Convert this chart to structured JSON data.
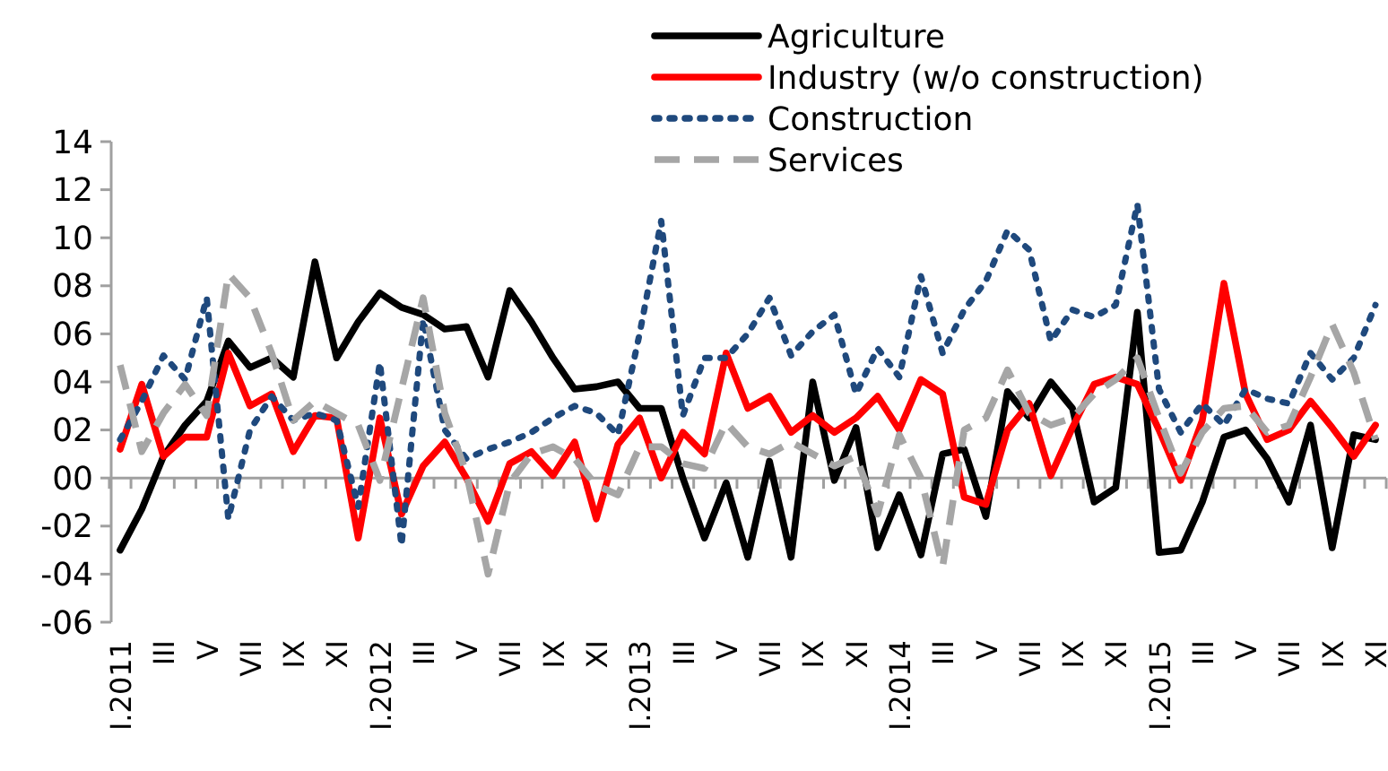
{
  "chart_data": {
    "type": "line",
    "categories": [
      "I.2011",
      null,
      "III",
      null,
      "V",
      null,
      "VII",
      null,
      "IX",
      null,
      "XI",
      null,
      "I.2012",
      null,
      "III",
      null,
      "V",
      null,
      "VII",
      null,
      "IX",
      null,
      "XI",
      null,
      "I.2013",
      null,
      "III",
      null,
      "V",
      null,
      "VII",
      null,
      "IX",
      null,
      "XI",
      null,
      "I.2014",
      null,
      "III",
      null,
      "V",
      null,
      "VII",
      null,
      "IX",
      null,
      "XI",
      null,
      "I.2015",
      null,
      "III",
      null,
      "V",
      null,
      "VII",
      null,
      "IX",
      null,
      "XI"
    ],
    "series": [
      {
        "name": "Agriculture",
        "color": "#000000",
        "line_style": "solid",
        "values": [
          -3.0,
          -1.3,
          0.9,
          2.2,
          3.2,
          5.7,
          4.6,
          5.0,
          4.2,
          9.0,
          5.0,
          6.5,
          7.7,
          7.1,
          6.8,
          6.2,
          6.3,
          4.2,
          7.8,
          6.5,
          5.0,
          3.7,
          3.8,
          4.0,
          2.9,
          2.9,
          0.0,
          -2.5,
          -0.2,
          -3.3,
          0.7,
          -3.3,
          4.0,
          -0.1,
          2.1,
          -2.9,
          -0.7,
          -3.2,
          1.0,
          1.2,
          -1.6,
          3.6,
          2.5,
          4.0,
          2.9,
          -1.0,
          -0.4,
          6.9,
          -3.1,
          -3.0,
          -1.0,
          1.7,
          2.0,
          0.8,
          -1.0,
          2.2,
          -2.9,
          1.8,
          1.6
        ]
      },
      {
        "name": "Industry (w/o construction)",
        "color": "#ff0000",
        "line_style": "solid",
        "values": [
          1.2,
          3.9,
          0.9,
          1.7,
          1.7,
          5.2,
          3.0,
          3.5,
          1.1,
          2.6,
          2.5,
          -2.5,
          2.5,
          -1.5,
          0.5,
          1.5,
          0.0,
          -1.8,
          0.6,
          1.1,
          0.1,
          1.5,
          -1.7,
          1.4,
          2.5,
          0.0,
          1.9,
          1.0,
          5.2,
          2.9,
          3.4,
          1.9,
          2.6,
          1.9,
          2.5,
          3.4,
          2.0,
          4.1,
          3.5,
          -0.8,
          -1.1,
          2.0,
          3.1,
          0.1,
          2.1,
          3.9,
          4.2,
          3.9,
          2.0,
          -0.1,
          2.4,
          8.1,
          3.5,
          1.6,
          2.0,
          3.2,
          2.1,
          0.9,
          2.2
        ]
      },
      {
        "name": "Construction",
        "color": "#1f497d",
        "line_style": "dotted",
        "values": [
          1.6,
          3.2,
          5.1,
          4.1,
          7.5,
          -1.7,
          2.0,
          3.4,
          2.4,
          2.7,
          2.4,
          -1.2,
          4.8,
          -2.8,
          6.6,
          2.0,
          0.8,
          1.2,
          1.5,
          1.9,
          2.5,
          3.0,
          2.7,
          1.8,
          6.0,
          10.7,
          2.6,
          5.0,
          5.0,
          6.0,
          7.5,
          5.1,
          6.1,
          6.8,
          3.5,
          5.4,
          4.2,
          8.4,
          5.2,
          7.0,
          8.2,
          10.3,
          9.5,
          5.7,
          7.0,
          6.7,
          7.2,
          11.4,
          3.7,
          1.9,
          3.1,
          2.2,
          3.7,
          3.3,
          3.1,
          5.2,
          4.1,
          5.0,
          7.2
        ]
      },
      {
        "name": "Services",
        "color": "#a6a6a6",
        "line_style": "dashed",
        "values": [
          4.7,
          1.1,
          2.7,
          3.9,
          2.6,
          8.5,
          7.5,
          5.2,
          2.4,
          3.2,
          2.7,
          2.2,
          -0.1,
          3.7,
          7.5,
          2.7,
          0.2,
          -4.0,
          -0.2,
          1.0,
          1.3,
          0.8,
          -0.3,
          -0.7,
          1.3,
          1.3,
          0.6,
          0.4,
          2.3,
          1.3,
          1.0,
          1.5,
          1.0,
          0.5,
          0.9,
          -1.5,
          1.8,
          0.0,
          -3.7,
          2.0,
          2.5,
          4.5,
          2.7,
          2.2,
          2.5,
          3.5,
          4.1,
          5.0,
          2.5,
          0.2,
          1.9,
          2.9,
          3.0,
          1.9,
          2.2,
          4.2,
          6.4,
          4.4,
          1.6
        ]
      }
    ],
    "ylim": [
      -6,
      14
    ],
    "yticks": [
      14,
      12,
      10,
      {
        "value": 8,
        "label": "08"
      },
      {
        "value": 6,
        "label": "06"
      },
      {
        "value": 4,
        "label": "04"
      },
      {
        "value": 2,
        "label": "02"
      },
      {
        "value": 0,
        "label": "00"
      },
      {
        "value": -2,
        "label": "-02"
      },
      {
        "value": -4,
        "label": "-04"
      },
      {
        "value": -6,
        "label": "-06"
      }
    ],
    "legend": "top"
  }
}
